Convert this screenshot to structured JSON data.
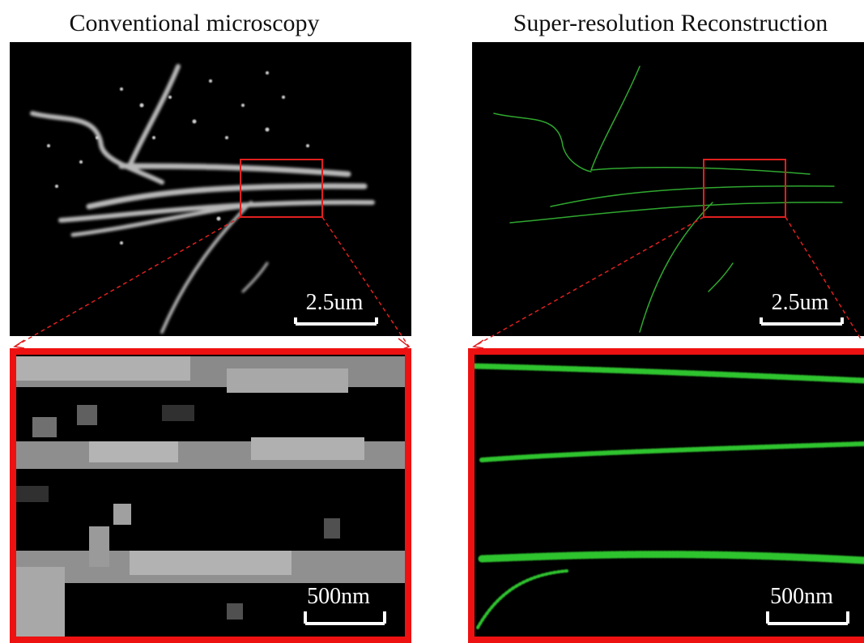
{
  "panels": {
    "conventional": {
      "title": "Conventional microscopy",
      "scale_top": "2.5um",
      "scale_bottom": "500nm"
    },
    "super_resolution": {
      "title": "Super-resolution Reconstruction",
      "scale_top": "2.5um",
      "scale_bottom": "500nm"
    }
  }
}
